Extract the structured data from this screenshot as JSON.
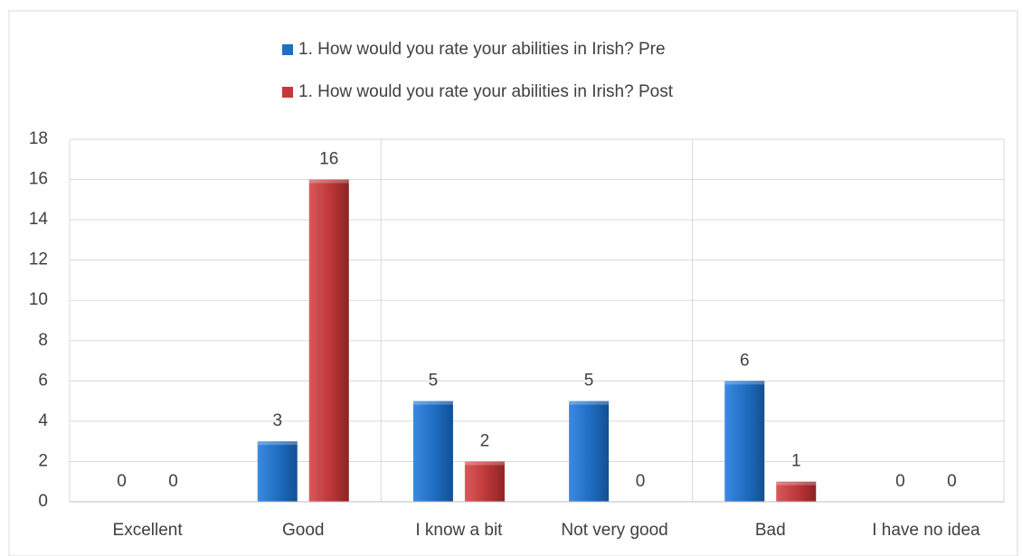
{
  "chart_data": {
    "type": "bar",
    "categories": [
      "Excellent",
      "Good",
      "I know a bit",
      "Not very good",
      "Bad",
      "I have no idea"
    ],
    "series": [
      {
        "name": "1.  How would you rate your abilities in Irish? Pre",
        "color": "#1f6fc5",
        "values": [
          0,
          3,
          5,
          5,
          6,
          0
        ]
      },
      {
        "name": "1.  How would you rate your abilities in Irish? Post",
        "color": "#c0393b",
        "values": [
          0,
          16,
          2,
          0,
          1,
          0
        ]
      }
    ],
    "ylim": [
      0,
      18
    ],
    "yticks": [
      0,
      2,
      4,
      6,
      8,
      10,
      12,
      14,
      16,
      18
    ],
    "grid": true,
    "legend": "top"
  }
}
